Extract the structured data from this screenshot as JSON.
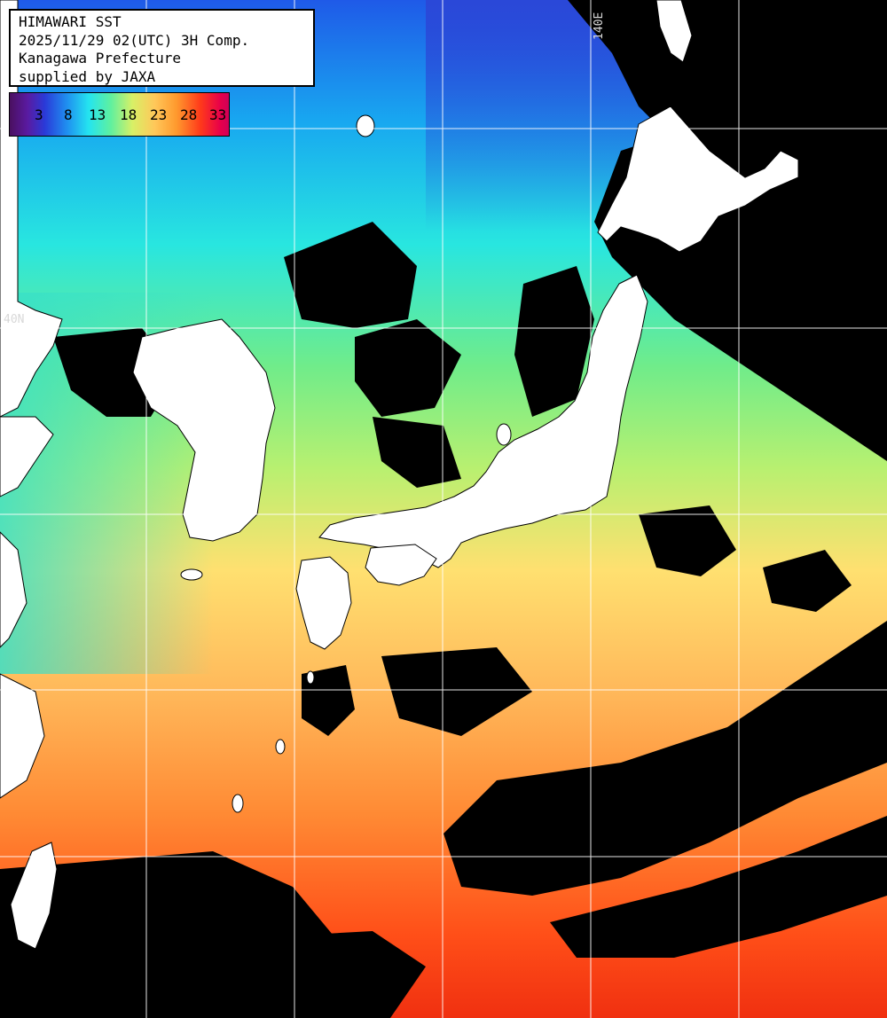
{
  "header": {
    "title": "HIMAWARI SST",
    "datetime": "2025/11/29 02(UTC) 3H Comp.",
    "region": "Kanagawa Prefecture",
    "credit": "supplied by JAXA"
  },
  "legend": {
    "labels": [
      "3",
      "8",
      "13",
      "18",
      "23",
      "28",
      "33"
    ],
    "colors": [
      "#4a1060",
      "#2a3ad8",
      "#24e4f0",
      "#5ef0a0",
      "#d8f066",
      "#ffc85a",
      "#ff9a2e",
      "#ff3a1a",
      "#d00058"
    ]
  },
  "grid_labels": {
    "latitude": "40N",
    "longitude": "140E"
  },
  "colors": {
    "land": "#ffffff",
    "no_data": "#000000",
    "grid": "#ffffff",
    "warm": "#ff6a1e",
    "cold": "#1e5af0"
  }
}
